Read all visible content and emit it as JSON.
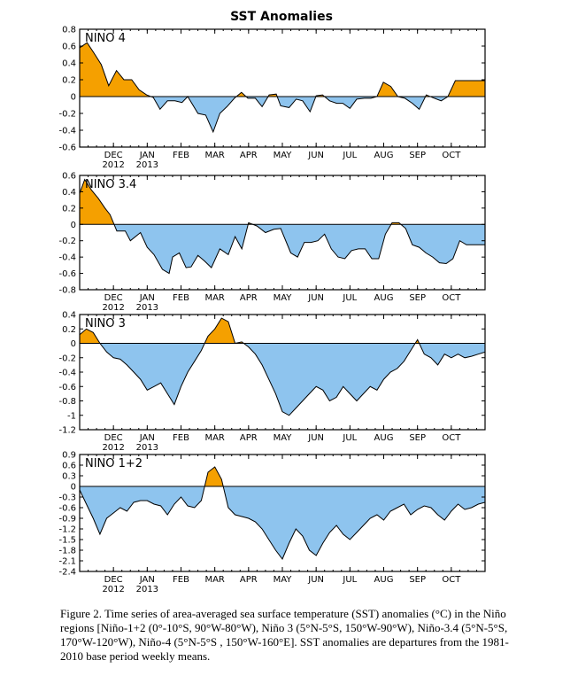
{
  "figure": {
    "title": "SST Anomalies",
    "caption": "Figure 2. Time series of area-averaged sea surface temperature (SST) anomalies (°C) in the Niño regions [Niño-1+2 (0°-10°S, 90°W-80°W), Niño 3 (5°N-5°S, 150°W-90°W), Niño-3.4 (5°N-5°S, 170°W-120°W), Niño-4 (5°N-5°S , 150°W-160°E]. SST anomalies are departures from the 1981-2010 base period weekly means.",
    "colors": {
      "positive": "#f5a000",
      "negative": "#8ec4ee"
    }
  },
  "chart_data": [
    {
      "type": "area",
      "panel_label": "NINO 4",
      "ylim": [
        -0.6,
        0.8
      ],
      "yticks": [
        "0.8",
        "0.6",
        "0.4",
        "0.2",
        "0",
        "-0.2",
        "-0.4",
        "-0.6"
      ],
      "xlim": [
        0,
        12
      ],
      "xticks": [
        {
          "x": 1,
          "label": "DEC",
          "sub": "2012"
        },
        {
          "x": 2,
          "label": "JAN",
          "sub": "2013"
        },
        {
          "x": 3,
          "label": "FEB",
          "sub": ""
        },
        {
          "x": 4,
          "label": "MAR",
          "sub": ""
        },
        {
          "x": 5,
          "label": "APR",
          "sub": ""
        },
        {
          "x": 6,
          "label": "MAY",
          "sub": ""
        },
        {
          "x": 7,
          "label": "JUN",
          "sub": ""
        },
        {
          "x": 8,
          "label": "JUL",
          "sub": ""
        },
        {
          "x": 9,
          "label": "AUG",
          "sub": ""
        },
        {
          "x": 10,
          "label": "SEP",
          "sub": ""
        },
        {
          "x": 11,
          "label": "OCT",
          "sub": ""
        }
      ],
      "x": [
        0,
        0.22,
        0.42,
        0.64,
        0.86,
        1.09,
        1.31,
        1.54,
        1.76,
        1.98,
        2.18,
        2.38,
        2.6,
        2.82,
        3.03,
        3.2,
        3.5,
        3.73,
        3.95,
        4.15,
        4.36,
        4.58,
        4.79,
        4.98,
        5.2,
        5.4,
        5.61,
        5.82,
        5.95,
        6.2,
        6.41,
        6.6,
        6.82,
        7.0,
        7.19,
        7.4,
        7.61,
        7.79,
        8.0,
        8.2,
        8.43,
        8.62,
        8.8,
        8.99,
        9.21,
        9.42,
        9.63,
        9.85,
        10.05,
        10.26,
        10.5,
        10.7,
        10.9,
        11.12,
        11.3,
        11.5,
        11.7,
        11.9,
        12.0
      ],
      "y": [
        0.58,
        0.64,
        0.52,
        0.38,
        0.13,
        0.31,
        0.2,
        0.2,
        0.08,
        0.02,
        -0.01,
        -0.15,
        -0.05,
        -0.05,
        -0.07,
        0.0,
        -0.2,
        -0.22,
        -0.42,
        -0.2,
        -0.12,
        -0.02,
        0.05,
        -0.02,
        -0.02,
        -0.12,
        0.02,
        0.03,
        -0.11,
        -0.13,
        -0.03,
        -0.05,
        -0.18,
        0.01,
        0.02,
        -0.05,
        -0.08,
        -0.08,
        -0.14,
        -0.03,
        -0.02,
        -0.02,
        0.0,
        0.17,
        0.12,
        0.0,
        -0.02,
        -0.08,
        -0.15,
        0.02,
        -0.02,
        -0.05,
        0.0,
        0.19,
        0.19,
        0.19,
        0.19,
        0.19,
        0.19
      ]
    },
    {
      "type": "area",
      "panel_label": "NINO 3.4",
      "ylim": [
        -0.8,
        0.6
      ],
      "yticks": [
        "0.6",
        "0.4",
        "0.2",
        "0",
        "-0.2",
        "-0.4",
        "-0.6",
        "-0.8"
      ],
      "xlim": [
        0,
        12
      ],
      "xticks": [
        {
          "x": 1,
          "label": "DEC",
          "sub": "2012"
        },
        {
          "x": 2,
          "label": "JAN",
          "sub": "2013"
        },
        {
          "x": 3,
          "label": "FEB",
          "sub": ""
        },
        {
          "x": 4,
          "label": "MAR",
          "sub": ""
        },
        {
          "x": 5,
          "label": "APR",
          "sub": ""
        },
        {
          "x": 6,
          "label": "MAY",
          "sub": ""
        },
        {
          "x": 7,
          "label": "JUN",
          "sub": ""
        },
        {
          "x": 8,
          "label": "JUL",
          "sub": ""
        },
        {
          "x": 9,
          "label": "AUG",
          "sub": ""
        },
        {
          "x": 10,
          "label": "SEP",
          "sub": ""
        },
        {
          "x": 11,
          "label": "OCT",
          "sub": ""
        }
      ],
      "x": [
        0,
        0.15,
        0.35,
        0.55,
        0.75,
        0.9,
        1.1,
        1.35,
        1.5,
        1.8,
        2.0,
        2.2,
        2.45,
        2.65,
        2.75,
        2.95,
        3.15,
        3.3,
        3.5,
        3.7,
        3.9,
        4.15,
        4.4,
        4.6,
        4.8,
        5.0,
        5.25,
        5.5,
        5.75,
        5.95,
        6.25,
        6.45,
        6.65,
        6.85,
        7.05,
        7.25,
        7.45,
        7.65,
        7.85,
        8.05,
        8.25,
        8.45,
        8.65,
        8.85,
        9.05,
        9.25,
        9.45,
        9.65,
        9.85,
        10.05,
        10.25,
        10.45,
        10.65,
        10.85,
        11.05,
        11.25,
        11.45,
        11.65,
        11.85,
        12.0
      ],
      "y": [
        0.38,
        0.55,
        0.42,
        0.32,
        0.2,
        0.12,
        -0.08,
        -0.08,
        -0.2,
        -0.1,
        -0.28,
        -0.37,
        -0.55,
        -0.6,
        -0.4,
        -0.35,
        -0.53,
        -0.52,
        -0.38,
        -0.45,
        -0.53,
        -0.3,
        -0.37,
        -0.15,
        -0.3,
        0.02,
        -0.02,
        -0.1,
        -0.06,
        -0.05,
        -0.35,
        -0.4,
        -0.22,
        -0.22,
        -0.2,
        -0.12,
        -0.3,
        -0.4,
        -0.42,
        -0.32,
        -0.3,
        -0.3,
        -0.42,
        -0.42,
        -0.12,
        0.02,
        0.02,
        -0.05,
        -0.25,
        -0.28,
        -0.35,
        -0.4,
        -0.47,
        -0.48,
        -0.42,
        -0.2,
        -0.25,
        -0.25,
        -0.25,
        -0.25
      ]
    },
    {
      "type": "area",
      "panel_label": "NINO 3",
      "ylim": [
        -1.2,
        0.4
      ],
      "yticks": [
        "0.4",
        "0.2",
        "0",
        "-0.2",
        "-0.4",
        "-0.6",
        "-0.8",
        "-1",
        "-1.2"
      ],
      "xlim": [
        0,
        12
      ],
      "xticks": [
        {
          "x": 1,
          "label": "DEC",
          "sub": "2012"
        },
        {
          "x": 2,
          "label": "JAN",
          "sub": "2013"
        },
        {
          "x": 3,
          "label": "FEB",
          "sub": ""
        },
        {
          "x": 4,
          "label": "MAR",
          "sub": ""
        },
        {
          "x": 5,
          "label": "APR",
          "sub": ""
        },
        {
          "x": 6,
          "label": "MAY",
          "sub": ""
        },
        {
          "x": 7,
          "label": "JUN",
          "sub": ""
        },
        {
          "x": 8,
          "label": "JUL",
          "sub": ""
        },
        {
          "x": 9,
          "label": "AUG",
          "sub": ""
        },
        {
          "x": 10,
          "label": "SEP",
          "sub": ""
        },
        {
          "x": 11,
          "label": "OCT",
          "sub": ""
        }
      ],
      "x": [
        0,
        0.2,
        0.4,
        0.6,
        0.8,
        1.0,
        1.2,
        1.4,
        1.6,
        1.8,
        2.0,
        2.2,
        2.4,
        2.6,
        2.8,
        3.0,
        3.2,
        3.4,
        3.6,
        3.8,
        4.0,
        4.2,
        4.4,
        4.6,
        4.8,
        5.0,
        5.2,
        5.4,
        5.6,
        5.8,
        6.0,
        6.2,
        6.4,
        6.6,
        6.8,
        7.0,
        7.2,
        7.4,
        7.6,
        7.8,
        8.0,
        8.2,
        8.4,
        8.6,
        8.8,
        9.0,
        9.2,
        9.4,
        9.6,
        9.8,
        10.0,
        10.2,
        10.4,
        10.6,
        10.8,
        11.0,
        11.2,
        11.4,
        11.6,
        11.8,
        12.0
      ],
      "y": [
        0.12,
        0.2,
        0.15,
        0.0,
        -0.12,
        -0.2,
        -0.22,
        -0.3,
        -0.4,
        -0.5,
        -0.65,
        -0.6,
        -0.55,
        -0.7,
        -0.85,
        -0.6,
        -0.4,
        -0.25,
        -0.1,
        0.1,
        0.2,
        0.35,
        0.3,
        0.0,
        0.02,
        -0.05,
        -0.15,
        -0.3,
        -0.5,
        -0.7,
        -0.95,
        -1.0,
        -0.9,
        -0.8,
        -0.7,
        -0.6,
        -0.65,
        -0.8,
        -0.75,
        -0.6,
        -0.7,
        -0.8,
        -0.7,
        -0.6,
        -0.65,
        -0.5,
        -0.4,
        -0.35,
        -0.25,
        -0.1,
        0.05,
        -0.15,
        -0.2,
        -0.3,
        -0.15,
        -0.2,
        -0.15,
        -0.2,
        -0.18,
        -0.15,
        -0.12
      ]
    },
    {
      "type": "area",
      "panel_label": "NINO 1+2",
      "ylim": [
        -2.4,
        0.9
      ],
      "yticks": [
        "0.9",
        "0.6",
        "0.3",
        "0",
        "-0.3",
        "-0.6",
        "-0.9",
        "-1.2",
        "-1.5",
        "-1.8",
        "-2.1",
        "-2.4"
      ],
      "xlim": [
        0,
        12
      ],
      "xticks": [
        {
          "x": 1,
          "label": "DEC",
          "sub": "2012"
        },
        {
          "x": 2,
          "label": "JAN",
          "sub": "2013"
        },
        {
          "x": 3,
          "label": "FEB",
          "sub": ""
        },
        {
          "x": 4,
          "label": "MAR",
          "sub": ""
        },
        {
          "x": 5,
          "label": "APR",
          "sub": ""
        },
        {
          "x": 6,
          "label": "MAY",
          "sub": ""
        },
        {
          "x": 7,
          "label": "JUN",
          "sub": ""
        },
        {
          "x": 8,
          "label": "JUL",
          "sub": ""
        },
        {
          "x": 9,
          "label": "AUG",
          "sub": ""
        },
        {
          "x": 10,
          "label": "SEP",
          "sub": ""
        },
        {
          "x": 11,
          "label": "OCT",
          "sub": ""
        }
      ],
      "x": [
        0,
        0.2,
        0.4,
        0.6,
        0.8,
        1.0,
        1.2,
        1.4,
        1.6,
        1.8,
        2.0,
        2.2,
        2.4,
        2.6,
        2.8,
        3.0,
        3.2,
        3.4,
        3.6,
        3.8,
        4.0,
        4.2,
        4.4,
        4.6,
        4.8,
        5.0,
        5.2,
        5.4,
        5.6,
        5.8,
        6.0,
        6.2,
        6.4,
        6.6,
        6.8,
        7.0,
        7.2,
        7.4,
        7.6,
        7.8,
        8.0,
        8.2,
        8.4,
        8.6,
        8.8,
        9.0,
        9.2,
        9.4,
        9.6,
        9.8,
        10.0,
        10.2,
        10.4,
        10.6,
        10.8,
        11.0,
        11.2,
        11.4,
        11.6,
        11.8,
        12.0
      ],
      "y": [
        -0.1,
        -0.5,
        -0.9,
        -1.35,
        -0.9,
        -0.75,
        -0.6,
        -0.7,
        -0.45,
        -0.4,
        -0.4,
        -0.5,
        -0.55,
        -0.8,
        -0.5,
        -0.3,
        -0.55,
        -0.6,
        -0.4,
        0.4,
        0.55,
        0.2,
        -0.6,
        -0.8,
        -0.85,
        -0.9,
        -1.0,
        -1.2,
        -1.5,
        -1.8,
        -2.05,
        -1.6,
        -1.2,
        -1.4,
        -1.8,
        -1.95,
        -1.6,
        -1.3,
        -1.1,
        -1.35,
        -1.5,
        -1.3,
        -1.1,
        -0.9,
        -0.8,
        -0.95,
        -0.7,
        -0.6,
        -0.5,
        -0.8,
        -0.65,
        -0.55,
        -0.6,
        -0.8,
        -0.95,
        -0.7,
        -0.5,
        -0.65,
        -0.6,
        -0.5,
        -0.45
      ]
    }
  ]
}
